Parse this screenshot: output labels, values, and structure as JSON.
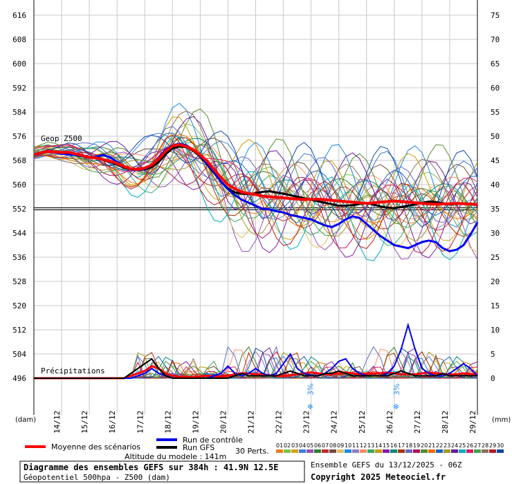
{
  "chart_data": {
    "type": "line",
    "title": "Diagramme des ensembles GEFS sur 384h : 41.9N 12.5E",
    "subtitle": "Géopotentiel 500hpa - Z500 (dam)",
    "y_left_unit": "(dam)",
    "y_right_unit": "(mm)",
    "y_left_ticks": [
      616,
      608,
      600,
      592,
      584,
      576,
      568,
      560,
      552,
      544,
      536,
      528,
      520,
      512,
      504,
      496
    ],
    "y_right_ticks": [
      75,
      70,
      65,
      60,
      55,
      50,
      45,
      40,
      35,
      30,
      25,
      20,
      15,
      10,
      5,
      0
    ],
    "ylim_left": [
      496,
      616
    ],
    "ylim_right": [
      0,
      75
    ],
    "reference_line": 552,
    "x_ticks": [
      "14/12",
      "15/12",
      "16/12",
      "17/12",
      "18/12",
      "19/12",
      "20/12",
      "21/12",
      "22/12",
      "23/12",
      "24/12",
      "25/12",
      "26/12",
      "27/12",
      "28/12",
      "29/12"
    ],
    "x_step_hours": 6,
    "geop_label": "Geop Z500",
    "precip_label": "Précipitations",
    "snow_markers": [
      {
        "date_index": 10,
        "label": "3%"
      },
      {
        "date_index": 13.1,
        "label": "3%"
      }
    ],
    "series": [
      {
        "name": "Moyenne des scénarios",
        "color": "#ff0000",
        "values": [
          570,
          570.5,
          571,
          570.8,
          570.6,
          570.7,
          570.2,
          569.6,
          569,
          568.8,
          568.3,
          567.8,
          567,
          566,
          565.2,
          565,
          565.5,
          566.5,
          568.5,
          571,
          572.8,
          573.2,
          572.6,
          571.5,
          569.8,
          567.8,
          565,
          562.3,
          560,
          558.6,
          557.5,
          557.1,
          556.7,
          556.2,
          556,
          555.8,
          555.6,
          555.4,
          555.2,
          555.1,
          555.1,
          555.2,
          555,
          554.8,
          554.6,
          554.4,
          554.2,
          554,
          553.8,
          554,
          554.2,
          554.4,
          554.6,
          554.4,
          554.2,
          554,
          553.8,
          553.6,
          553.5,
          553.6,
          553.7,
          553.8,
          553.7,
          553.6,
          553.4
        ]
      },
      {
        "name": "Run de contrôle",
        "color": "#0000ee",
        "values": [
          570,
          570.6,
          571,
          570.6,
          570.2,
          570,
          569.8,
          569.4,
          569,
          569.2,
          569.8,
          569,
          567.5,
          566,
          565,
          564.8,
          565.2,
          566.5,
          569,
          571.5,
          573,
          573.5,
          573,
          571.5,
          569.5,
          567,
          564,
          561,
          558.5,
          556.5,
          555,
          554,
          553,
          552,
          551.8,
          551.2,
          550.8,
          550,
          549.5,
          549,
          548.5,
          547.5,
          546.5,
          546,
          547,
          548.5,
          549.5,
          549,
          547,
          545,
          543,
          541.5,
          540,
          539.5,
          539,
          540,
          541,
          541.5,
          541,
          539,
          538,
          538.5,
          540,
          543.5,
          547.5
        ]
      },
      {
        "name": "Run GFS",
        "color": "#000000",
        "values": [
          570,
          570.5,
          571,
          570.8,
          570.4,
          570.2,
          569.8,
          569.3,
          569,
          568.8,
          568.1,
          567.5,
          566.6,
          565.6,
          565,
          564.8,
          565,
          565.8,
          567.5,
          570,
          572,
          572.6,
          572.4,
          571.2,
          569.2,
          566.7,
          563.8,
          561,
          558.7,
          557.4,
          557,
          556.8,
          557.2,
          557.6,
          557.8,
          557.4,
          557,
          556.5,
          556,
          555.5,
          555,
          554.5,
          554,
          553.5,
          553,
          553,
          553.2,
          553.6,
          553.9,
          553.4,
          552.8,
          552.4,
          552.2,
          552.6,
          553,
          553.5,
          554,
          554.4,
          554.2,
          553.8,
          553.4,
          553.6,
          553.8,
          553.5,
          553.2
        ]
      }
    ],
    "precip_series": [
      {
        "name": "Moyenne des scénarios",
        "values": [
          0,
          0,
          0,
          0,
          0,
          0,
          0,
          0,
          0,
          0,
          0,
          0,
          0,
          0,
          0.5,
          1,
          1.5,
          2.5,
          2,
          1,
          0.5,
          0.3,
          0.2,
          0.2,
          0.4,
          0.5,
          0.4,
          0.3,
          0.5,
          0.8,
          1,
          1,
          0.8,
          0.8,
          0.6,
          0.5,
          0.5,
          0.6,
          0.8,
          1,
          1.2,
          1,
          0.8,
          0.8,
          1,
          1.2,
          1,
          0.8,
          1,
          1,
          1,
          1.2,
          1,
          0.8,
          0.8,
          0.8,
          1,
          1.2,
          1,
          0.9,
          0.8,
          0.8,
          1,
          0.9,
          0.8
        ]
      },
      {
        "name": "Run de contrôle",
        "values": [
          0,
          0,
          0,
          0,
          0,
          0,
          0,
          0,
          0,
          0,
          0,
          0,
          0,
          0,
          0,
          0.5,
          1,
          2,
          1,
          0.5,
          0,
          0,
          0,
          0,
          0,
          0,
          0.5,
          1,
          2.5,
          1,
          0.5,
          1,
          2,
          1,
          0.5,
          1,
          3,
          5,
          2,
          1,
          0.5,
          0.5,
          1,
          2,
          3.5,
          4,
          2,
          1,
          0.5,
          0.5,
          0.5,
          1,
          2.5,
          6,
          11,
          6,
          2,
          1,
          0.5,
          0.5,
          1,
          2,
          3,
          2,
          0.5
        ]
      },
      {
        "name": "Run GFS",
        "values": [
          0,
          0,
          0,
          0,
          0,
          0,
          0,
          0,
          0,
          0,
          0,
          0,
          0,
          0,
          1,
          2,
          3,
          4,
          2,
          0.5,
          0,
          0,
          0,
          0,
          0,
          0,
          0,
          0,
          0,
          0.5,
          1,
          0.5,
          0.5,
          0.5,
          0.5,
          0.5,
          1,
          1.5,
          1,
          0.5,
          0.5,
          0.5,
          1,
          1,
          1.5,
          1,
          0.5,
          0.5,
          0.5,
          0.5,
          0.5,
          0.5,
          1,
          1.5,
          1,
          0.5,
          0.5,
          0.5,
          0.5,
          1,
          0.5,
          0.5,
          0.5,
          0.5,
          0.5
        ]
      }
    ],
    "legend": {
      "mean": "Moyenne des scénarios",
      "control": "Run de contrôle",
      "gfs": "Run GFS",
      "perts_label": "30 Perts.",
      "pert_numbers": [
        "01",
        "02",
        "03",
        "04",
        "05",
        "06",
        "07",
        "08",
        "09",
        "10",
        "11",
        "12",
        "13",
        "14",
        "15",
        "16",
        "17",
        "18",
        "19",
        "20",
        "21",
        "22",
        "23",
        "24",
        "25",
        "26",
        "27",
        "28",
        "29",
        "30"
      ],
      "pert_colors": [
        "#e87e1e",
        "#79c24a",
        "#d4a017",
        "#3b7dd8",
        "#9b4bb8",
        "#2e7d32",
        "#c62828",
        "#6d4c41",
        "#e0c060",
        "#1e88e5",
        "#8e7cc3",
        "#ff8a65",
        "#33aa66",
        "#cc9900",
        "#7b1fa2",
        "#00897b",
        "#aa3300",
        "#5c6bc0",
        "#ad1457",
        "#558b2f",
        "#ef6c00",
        "#1565c0",
        "#9e9d24",
        "#6a1b9a",
        "#00acc1",
        "#d81b60",
        "#43a047",
        "#8d6e63",
        "#b71c1c",
        "#0d47a1"
      ]
    },
    "altitude": "Altitude du modele : 141m",
    "run_info": "Ensemble GEFS du 13/12/2025 - 06Z",
    "copyright": "Copyright 2025 Meteociel.fr"
  }
}
